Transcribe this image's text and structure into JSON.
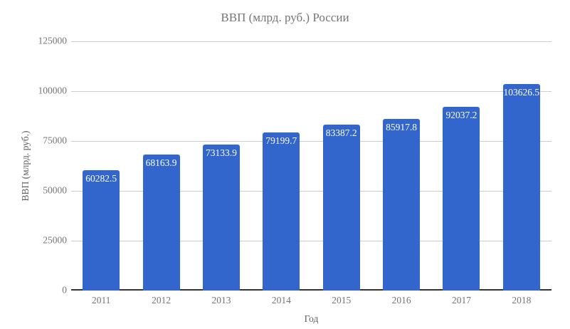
{
  "page": {
    "background": "#ffffff"
  },
  "chart_data": {
    "type": "bar",
    "title": "ВВП (млрд. руб.) России",
    "xlabel": "Год",
    "ylabel": "ВВП (млрд. руб.)",
    "categories": [
      "2011",
      "2012",
      "2013",
      "2014",
      "2015",
      "2016",
      "2017",
      "2018"
    ],
    "values": [
      60282.5,
      68163.9,
      73133.9,
      79199.7,
      83387.2,
      85917.8,
      92037.2,
      103626.5
    ],
    "value_labels": [
      "60282.5",
      "68163.9",
      "73133.9",
      "79199.7",
      "83387.2",
      "85917.8",
      "92037.2",
      "103626.5"
    ],
    "ylim": [
      0,
      125000
    ],
    "yticks": [
      0,
      25000,
      50000,
      75000,
      100000,
      125000
    ],
    "ytick_labels": [
      "0",
      "25000",
      "50000",
      "75000",
      "100000",
      "125000"
    ],
    "grid": true,
    "legend_position": "none",
    "colors": {
      "bar": "#3366cc",
      "bar_label": "#ffffff",
      "title": "#757575",
      "axis_text": "#757575",
      "axis_title": "#616161",
      "gridline": "#cccccc",
      "baseline": "#333333",
      "background": "#ffffff"
    }
  }
}
